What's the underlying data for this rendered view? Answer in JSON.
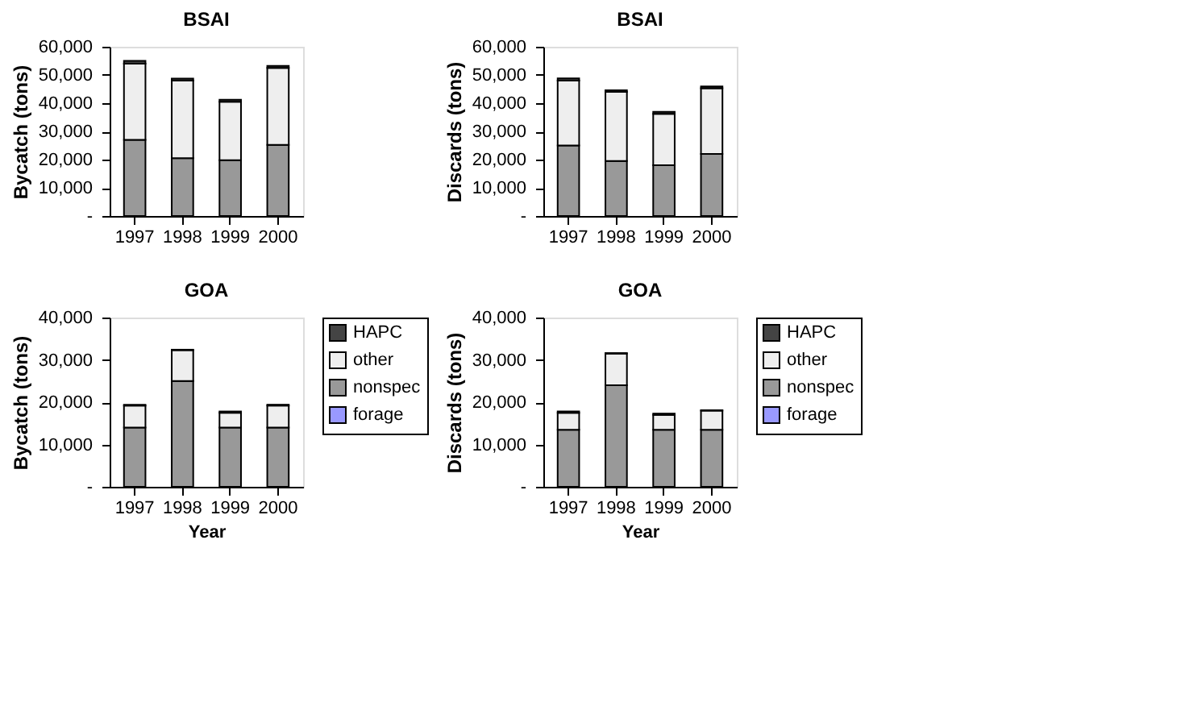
{
  "chart_data": [
    {
      "type": "bar",
      "stacked": true,
      "title": "BSAI",
      "ylabel": "Bycatch (tons)",
      "categories": [
        "1997",
        "1998",
        "1999",
        "2000"
      ],
      "ylim": [
        0,
        60000
      ],
      "yticks": [
        {
          "value": 0,
          "label": "-"
        },
        {
          "value": 10000,
          "label": "10,000"
        },
        {
          "value": 20000,
          "label": "20,000"
        },
        {
          "value": 30000,
          "label": "30,000"
        },
        {
          "value": 40000,
          "label": "40,000"
        },
        {
          "value": 50000,
          "label": "50,000"
        },
        {
          "value": 60000,
          "label": "60,000"
        }
      ],
      "grid": false,
      "series": [
        {
          "color": "#9999ff",
          "values": [
            0,
            0,
            0,
            0
          ]
        },
        {
          "color": "#999999",
          "values": [
            27000,
            20500,
            19800,
            25200
          ]
        },
        {
          "color": "#eeeeee",
          "values": [
            27000,
            27500,
            20700,
            27300
          ]
        },
        {
          "color": "#444444",
          "values": [
            1000,
            700,
            700,
            700
          ]
        }
      ]
    },
    {
      "type": "bar",
      "stacked": true,
      "title": "BSAI",
      "ylabel": "Discards (tons)",
      "categories": [
        "1997",
        "1998",
        "1999",
        "2000"
      ],
      "ylim": [
        0,
        60000
      ],
      "yticks": [
        {
          "value": 0,
          "label": "-"
        },
        {
          "value": 10000,
          "label": "10,000"
        },
        {
          "value": 20000,
          "label": "20,000"
        },
        {
          "value": 30000,
          "label": "30,000"
        },
        {
          "value": 40000,
          "label": "40,000"
        },
        {
          "value": 50000,
          "label": "50,000"
        },
        {
          "value": 60000,
          "label": "60,000"
        }
      ],
      "grid": false,
      "series": [
        {
          "color": "#9999ff",
          "values": [
            0,
            0,
            0,
            0
          ]
        },
        {
          "color": "#999999",
          "values": [
            25000,
            19500,
            18000,
            22000
          ]
        },
        {
          "color": "#eeeeee",
          "values": [
            23000,
            24500,
            18200,
            23300
          ]
        },
        {
          "color": "#444444",
          "values": [
            800,
            600,
            700,
            600
          ]
        }
      ]
    },
    {
      "type": "bar",
      "stacked": true,
      "title": "GOA",
      "xlabel": "Year",
      "ylabel": "Bycatch (tons)",
      "categories": [
        "1997",
        "1998",
        "1999",
        "2000"
      ],
      "ylim": [
        0,
        40000
      ],
      "yticks": [
        {
          "value": 0,
          "label": "-"
        },
        {
          "value": 10000,
          "label": "10,000"
        },
        {
          "value": 20000,
          "label": "20,000"
        },
        {
          "value": 30000,
          "label": "30,000"
        },
        {
          "value": 40000,
          "label": "40,000"
        }
      ],
      "grid": false,
      "legend": "top right",
      "series": [
        {
          "name": "forage",
          "color": "#9999ff",
          "values": [
            0,
            0,
            0,
            0
          ]
        },
        {
          "name": "nonspec",
          "color": "#999999",
          "values": [
            14000,
            25000,
            14000,
            14000
          ]
        },
        {
          "name": "other",
          "color": "#eeeeee",
          "values": [
            5200,
            7300,
            3500,
            5200
          ]
        },
        {
          "name": "HAPC",
          "color": "#444444",
          "values": [
            200,
            100,
            300,
            200
          ]
        }
      ]
    },
    {
      "type": "bar",
      "stacked": true,
      "title": "GOA",
      "xlabel": "Year",
      "ylabel": "Discards (tons)",
      "categories": [
        "1997",
        "1998",
        "1999",
        "2000"
      ],
      "ylim": [
        0,
        40000
      ],
      "yticks": [
        {
          "value": 0,
          "label": "-"
        },
        {
          "value": 10000,
          "label": "10,000"
        },
        {
          "value": 20000,
          "label": "20,000"
        },
        {
          "value": 30000,
          "label": "30,000"
        },
        {
          "value": 40000,
          "label": "40,000"
        }
      ],
      "grid": false,
      "legend": "top right",
      "series": [
        {
          "name": "forage",
          "color": "#9999ff",
          "values": [
            0,
            0,
            0,
            0
          ]
        },
        {
          "name": "nonspec",
          "color": "#999999",
          "values": [
            13500,
            24000,
            13500,
            13500
          ]
        },
        {
          "name": "other",
          "color": "#eeeeee",
          "values": [
            4000,
            7500,
            3500,
            4500
          ]
        },
        {
          "name": "HAPC",
          "color": "#444444",
          "values": [
            300,
            100,
            300,
            100
          ]
        }
      ]
    }
  ]
}
